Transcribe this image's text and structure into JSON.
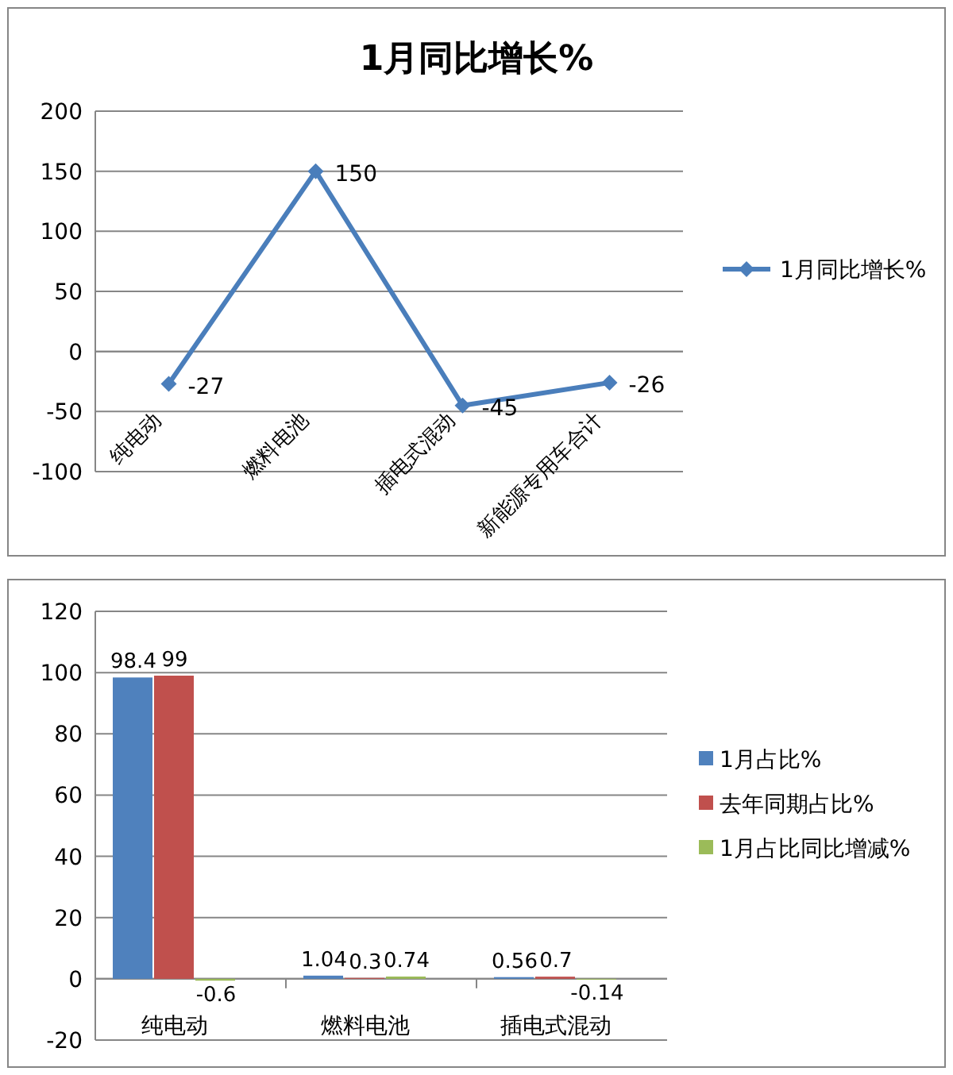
{
  "chart_data": [
    {
      "type": "line",
      "title": "1月同比增长%",
      "categories": [
        "纯电动",
        "燃料电池",
        "插电式混动",
        "新能源专用车合计"
      ],
      "series": [
        {
          "name": "1月同比增长%",
          "color": "#4a7ebb",
          "values": [
            -27,
            150,
            -45,
            -26
          ]
        }
      ],
      "ylim": [
        -100,
        200
      ],
      "yticks": [
        -100,
        -50,
        0,
        50,
        100,
        150,
        200
      ],
      "grid": "y",
      "legend": "right",
      "marker": "diamond",
      "data_labels": true
    },
    {
      "type": "bar",
      "categories": [
        "纯电动",
        "燃料电池",
        "插电式混动"
      ],
      "series": [
        {
          "name": "1月占比%",
          "color": "#4f81bd",
          "values": [
            98.4,
            1.04,
            0.56
          ]
        },
        {
          "name": "去年同期占比%",
          "color": "#c0504d",
          "values": [
            99,
            0.3,
            0.7
          ]
        },
        {
          "name": "1月占比同比增减%",
          "color": "#9bbb59",
          "values": [
            -0.6,
            0.74,
            -0.14
          ]
        }
      ],
      "ylim": [
        -20,
        120
      ],
      "yticks": [
        -20,
        0,
        20,
        40,
        60,
        80,
        100,
        120
      ],
      "grid": "y",
      "legend": "right",
      "data_labels": true
    }
  ]
}
